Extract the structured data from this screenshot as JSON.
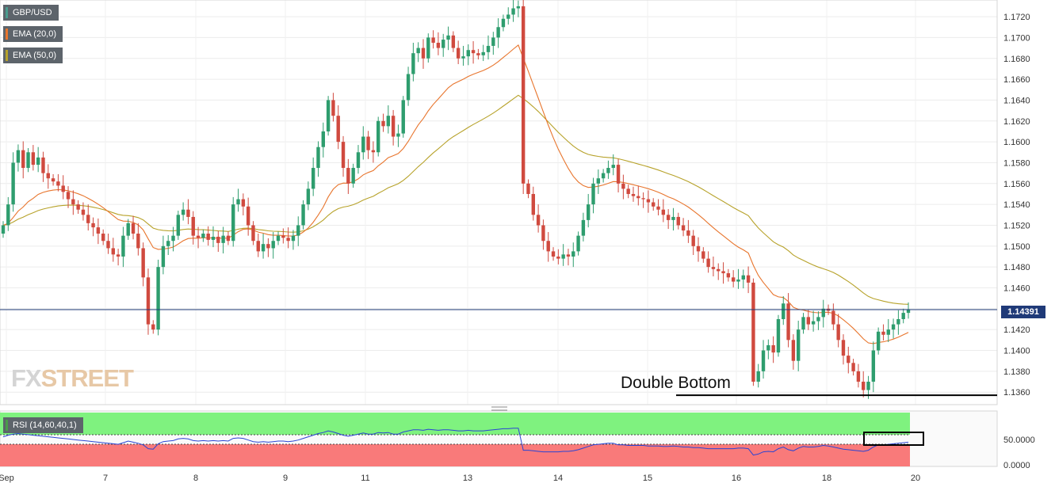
{
  "legend": {
    "symbol": "GBP/USD",
    "ema20": "EMA (20,0)",
    "ema50": "EMA (50,0)",
    "rsi": "RSI (14,60,40,1)"
  },
  "colors": {
    "up": "#2e9d6e",
    "down": "#d04a3f",
    "ema20": "#e8752d",
    "ema50": "#b7a22a",
    "price_line": "#1f3a78",
    "rsi_line": "#2a44d4",
    "rsi_upper_zone": "#7ff27f",
    "rsi_lower_zone": "#f97a7a"
  },
  "watermark": {
    "fx": "FX",
    "street": "STREET"
  },
  "annotation": {
    "text": "Double Bottom",
    "level": 1.1357
  },
  "current_price": {
    "label": "1.14391",
    "value": 1.14391
  },
  "chart_data": [
    {
      "type": "candlestick",
      "title": "GBP/USD",
      "y_axis_side": "right",
      "ylim": [
        1.1348,
        1.1736
      ],
      "y_ticks": [
        "1.1360",
        "1.1380",
        "1.1400",
        "1.1420",
        "1.1440",
        "1.1460",
        "1.1480",
        "1.1500",
        "1.1520",
        "1.1540",
        "1.1560",
        "1.1580",
        "1.1600",
        "1.1620",
        "1.1640",
        "1.1660",
        "1.1680",
        "1.1700",
        "1.1720"
      ],
      "x_ticks": [
        "Sep",
        "7",
        "8",
        "9",
        "11",
        "13",
        "14",
        "15",
        "16",
        "18",
        "20"
      ],
      "grid": true,
      "close": [
        1.152,
        1.154,
        1.158,
        1.1592,
        1.1575,
        1.159,
        1.1578,
        1.1585,
        1.157,
        1.1565,
        1.1562,
        1.1558,
        1.1552,
        1.1545,
        1.154,
        1.1535,
        1.153,
        1.1522,
        1.1518,
        1.1512,
        1.1505,
        1.1498,
        1.1492,
        1.149,
        1.151,
        1.1522,
        1.1512,
        1.1498,
        1.147,
        1.1425,
        1.142,
        1.148,
        1.15,
        1.1505,
        1.151,
        1.153,
        1.1535,
        1.1528,
        1.151,
        1.1508,
        1.1512,
        1.1506,
        1.1509,
        1.1503,
        1.151,
        1.1505,
        1.154,
        1.1545,
        1.1538,
        1.152,
        1.1505,
        1.1495,
        1.1502,
        1.1498,
        1.1505,
        1.151,
        1.1508,
        1.1505,
        1.151,
        1.152,
        1.154,
        1.1555,
        1.1575,
        1.1595,
        1.161,
        1.164,
        1.1625,
        1.16,
        1.1575,
        1.156,
        1.1575,
        1.159,
        1.1605,
        1.1592,
        1.159,
        1.162,
        1.1615,
        1.1625,
        1.1605,
        1.1608,
        1.164,
        1.1665,
        1.1685,
        1.169,
        1.168,
        1.17,
        1.1695,
        1.169,
        1.1698,
        1.1702,
        1.169,
        1.168,
        1.1682,
        1.1688,
        1.1685,
        1.1683,
        1.1686,
        1.1692,
        1.17,
        1.171,
        1.1718,
        1.1722,
        1.1728,
        1.173,
        1.156,
        1.155,
        1.153,
        1.152,
        1.1505,
        1.1495,
        1.149,
        1.1488,
        1.1492,
        1.149,
        1.1495,
        1.151,
        1.1525,
        1.154,
        1.156,
        1.1565,
        1.157,
        1.1575,
        1.1578,
        1.156,
        1.1555,
        1.155,
        1.1548,
        1.1546,
        1.1545,
        1.1542,
        1.1538,
        1.1535,
        1.153,
        1.1525,
        1.1528,
        1.152,
        1.1515,
        1.151,
        1.15,
        1.1495,
        1.1488,
        1.148,
        1.1478,
        1.1476,
        1.1474,
        1.147,
        1.1466,
        1.1468,
        1.1472,
        1.1465,
        1.137,
        1.138,
        1.14,
        1.1405,
        1.1398,
        1.143,
        1.1445,
        1.141,
        1.139,
        1.142,
        1.1432,
        1.1425,
        1.1428,
        1.1432,
        1.144,
        1.1438,
        1.1425,
        1.141,
        1.1395,
        1.1388,
        1.138,
        1.137,
        1.1362,
        1.137,
        1.14,
        1.1418,
        1.1415,
        1.142,
        1.1425,
        1.143,
        1.1436,
        1.1439
      ]
    },
    {
      "type": "line",
      "title": "RSI (14,60,40,1)",
      "ylim": [
        0,
        100
      ],
      "y_ticks": [
        "0.0000",
        "50.0000"
      ],
      "upper_level": 60,
      "lower_level": 40,
      "values": [
        55,
        58,
        60,
        61,
        60,
        59,
        58,
        57,
        56,
        55,
        54,
        53,
        52,
        51,
        50,
        49,
        48,
        47,
        46,
        45,
        44,
        43,
        42,
        41,
        44,
        47,
        45,
        43,
        40,
        33,
        32,
        42,
        46,
        47,
        48,
        51,
        52,
        51,
        48,
        47,
        48,
        47,
        48,
        47,
        48,
        47,
        52,
        53,
        52,
        49,
        46,
        45,
        46,
        45,
        46,
        47,
        47,
        46,
        47,
        49,
        52,
        55,
        58,
        61,
        63,
        66,
        64,
        61,
        58,
        56,
        58,
        60,
        62,
        60,
        60,
        63,
        62,
        63,
        60,
        60,
        64,
        66,
        68,
        68,
        67,
        69,
        68,
        67,
        68,
        68,
        67,
        66,
        66,
        67,
        66,
        66,
        66,
        67,
        68,
        69,
        70,
        70,
        71,
        71,
        30,
        30,
        29,
        28,
        27,
        27,
        27,
        27,
        28,
        28,
        29,
        31,
        34,
        37,
        40,
        41,
        42,
        43,
        43,
        40,
        40,
        39,
        39,
        39,
        39,
        38,
        38,
        38,
        37,
        37,
        38,
        37,
        36,
        36,
        35,
        35,
        34,
        33,
        33,
        33,
        33,
        33,
        33,
        34,
        34,
        33,
        21,
        23,
        27,
        28,
        27,
        33,
        36,
        31,
        29,
        34,
        37,
        36,
        36,
        37,
        39,
        38,
        36,
        34,
        32,
        31,
        30,
        29,
        28,
        30,
        36,
        40,
        40,
        41,
        42,
        43,
        44,
        45
      ]
    }
  ]
}
